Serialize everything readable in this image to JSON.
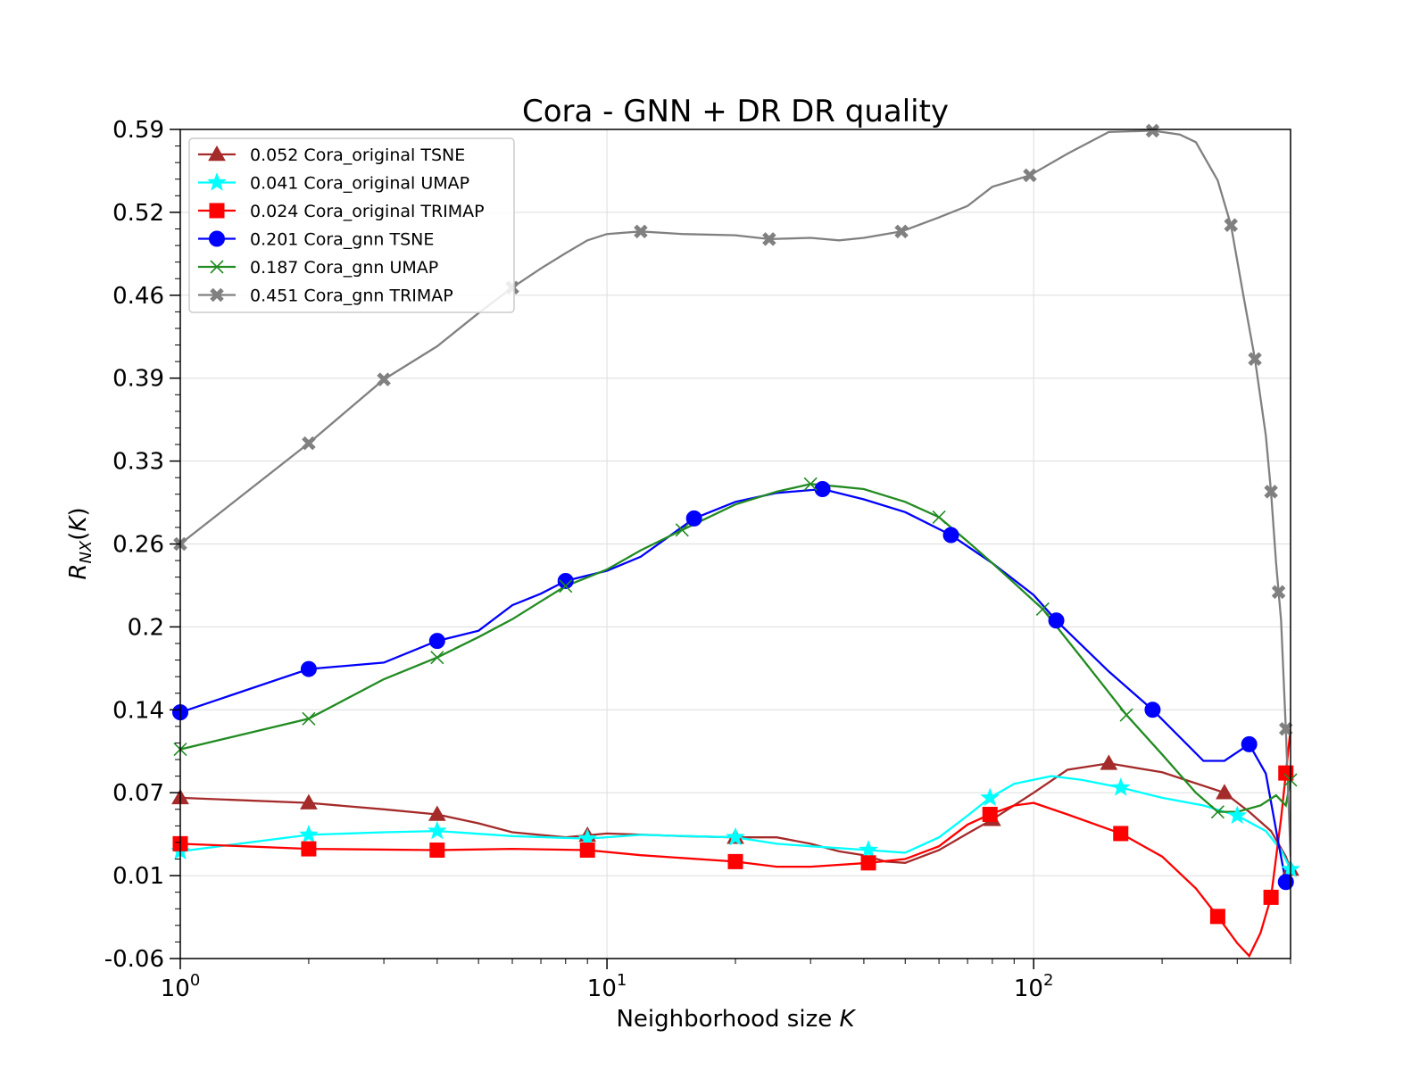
{
  "chart_data": {
    "type": "line",
    "title": "Cora - GNN + DR DR quality",
    "xlabel": "Neighborhood size K",
    "ylabel": "R_NX(K)",
    "xscale": "log",
    "xlim": [
      1,
      400
    ],
    "ylim": [
      -0.06,
      0.59
    ],
    "yticks": [
      "0.59",
      "0.52",
      "0.46",
      "0.39",
      "0.33",
      "0.26",
      "0.2",
      "0.14",
      "0.07",
      "0.01",
      "-0.06"
    ],
    "ytick_values": [
      0.59,
      0.525,
      0.46,
      0.395,
      0.33,
      0.265,
      0.2,
      0.135,
      0.07,
      0.005,
      -0.06
    ],
    "xticks": [
      {
        "value": 1,
        "base": "10",
        "exp": "0"
      },
      {
        "value": 10,
        "base": "10",
        "exp": "1"
      },
      {
        "value": 100,
        "base": "10",
        "exp": "2"
      }
    ],
    "grid": true,
    "legend_position": "top-left",
    "series": [
      {
        "name": "0.052 Cora_original TSNE",
        "color": "#a52a2a",
        "marker": "triangle",
        "x": [
          1,
          2,
          3,
          4,
          5,
          6,
          8,
          10,
          15,
          20,
          25,
          30,
          35,
          40,
          45,
          50,
          60,
          70,
          80,
          100,
          120,
          150,
          200,
          280,
          320,
          360,
          390,
          400
        ],
        "y": [
          0.066,
          0.062,
          0.057,
          0.053,
          0.046,
          0.039,
          0.035,
          0.038,
          0.036,
          0.035,
          0.035,
          0.03,
          0.024,
          0.021,
          0.016,
          0.015,
          0.025,
          0.038,
          0.049,
          0.07,
          0.088,
          0.093,
          0.086,
          0.07,
          0.055,
          0.04,
          0.02,
          0.01
        ]
      },
      {
        "name": "0.041 Cora_original UMAP",
        "color": "#00ffff",
        "marker": "star",
        "x": [
          1,
          2,
          3,
          4,
          6,
          9,
          12,
          20,
          25,
          30,
          41,
          50,
          60,
          70,
          79,
          90,
          110,
          130,
          160,
          200,
          250,
          300,
          350,
          380,
          400
        ],
        "y": [
          0.024,
          0.037,
          0.039,
          0.04,
          0.036,
          0.034,
          0.037,
          0.035,
          0.03,
          0.028,
          0.025,
          0.023,
          0.035,
          0.052,
          0.066,
          0.077,
          0.083,
          0.08,
          0.074,
          0.066,
          0.06,
          0.052,
          0.04,
          0.025,
          0.01
        ]
      },
      {
        "name": "0.024 Cora_original TRIMAP",
        "color": "#ff0000",
        "marker": "square",
        "x": [
          1,
          2,
          4,
          6,
          9,
          12,
          20,
          25,
          30,
          41,
          50,
          60,
          70,
          79,
          90,
          100,
          120,
          160,
          200,
          240,
          270,
          300,
          320,
          340,
          360,
          380,
          400
        ],
        "y": [
          0.03,
          0.026,
          0.025,
          0.026,
          0.025,
          0.021,
          0.016,
          0.012,
          0.012,
          0.015,
          0.018,
          0.028,
          0.045,
          0.053,
          0.06,
          0.062,
          0.053,
          0.038,
          0.02,
          -0.005,
          -0.027,
          -0.048,
          -0.058,
          -0.04,
          -0.012,
          0.05,
          0.12
        ]
      },
      {
        "name": "0.201 Cora_gnn TSNE",
        "color": "#0000ff",
        "marker": "circle",
        "x": [
          1,
          2,
          3,
          4,
          5,
          6,
          7,
          8,
          10,
          12,
          16,
          20,
          25,
          32,
          40,
          50,
          64,
          80,
          100,
          113,
          150,
          190,
          250,
          280,
          320,
          350,
          375,
          390,
          400
        ],
        "y": [
          0.133,
          0.167,
          0.172,
          0.189,
          0.197,
          0.217,
          0.226,
          0.236,
          0.244,
          0.255,
          0.285,
          0.298,
          0.305,
          0.308,
          0.3,
          0.29,
          0.272,
          0.25,
          0.225,
          0.205,
          0.165,
          0.135,
          0.095,
          0.095,
          0.108,
          0.085,
          0.03,
          0.0,
          0.0
        ]
      },
      {
        "name": "0.187 Cora_gnn UMAP",
        "color": "#228b22",
        "marker": "x",
        "x": [
          1,
          2,
          3,
          4,
          5,
          6,
          7,
          8,
          10,
          12,
          15,
          20,
          25,
          30,
          35,
          40,
          50,
          60,
          70,
          80,
          105,
          130,
          165,
          200,
          240,
          270,
          300,
          340,
          370,
          390,
          400
        ],
        "y": [
          0.104,
          0.128,
          0.159,
          0.176,
          0.192,
          0.206,
          0.22,
          0.232,
          0.245,
          0.26,
          0.276,
          0.296,
          0.306,
          0.312,
          0.31,
          0.308,
          0.298,
          0.286,
          0.267,
          0.25,
          0.214,
          0.175,
          0.131,
          0.1,
          0.07,
          0.055,
          0.055,
          0.06,
          0.068,
          0.06,
          0.08
        ]
      },
      {
        "name": "0.451 Cora_gnn TRIMAP",
        "color": "#808080",
        "marker": "x-bold",
        "x": [
          1,
          2,
          3,
          4,
          5,
          6,
          7,
          8,
          9,
          10,
          12,
          15,
          20,
          24,
          30,
          35,
          40,
          49,
          60,
          70,
          80,
          98,
          120,
          150,
          190,
          220,
          240,
          270,
          290,
          310,
          330,
          350,
          360,
          370,
          380,
          390,
          400
        ],
        "y": [
          0.265,
          0.344,
          0.394,
          0.42,
          0.446,
          0.466,
          0.481,
          0.493,
          0.503,
          0.508,
          0.51,
          0.508,
          0.507,
          0.504,
          0.505,
          0.503,
          0.505,
          0.51,
          0.521,
          0.53,
          0.545,
          0.554,
          0.571,
          0.588,
          0.589,
          0.586,
          0.58,
          0.55,
          0.515,
          0.46,
          0.41,
          0.35,
          0.306,
          0.25,
          0.205,
          0.12,
          0.02
        ]
      }
    ],
    "marker_x": [
      [
        1,
        2,
        4,
        9,
        20,
        80,
        150,
        280,
        400
      ],
      [
        1,
        2,
        4,
        9,
        20,
        41,
        79,
        160,
        300,
        400
      ],
      [
        1,
        2,
        4,
        9,
        20,
        41,
        79,
        160,
        270,
        360,
        390
      ],
      [
        1,
        2,
        4,
        8,
        16,
        32,
        64,
        113,
        190,
        320,
        390
      ],
      [
        1,
        2,
        4,
        8,
        15,
        30,
        60,
        105,
        165,
        270,
        400
      ],
      [
        1,
        2,
        3,
        6,
        12,
        24,
        49,
        98,
        190,
        290,
        330,
        360,
        375,
        390
      ]
    ]
  }
}
